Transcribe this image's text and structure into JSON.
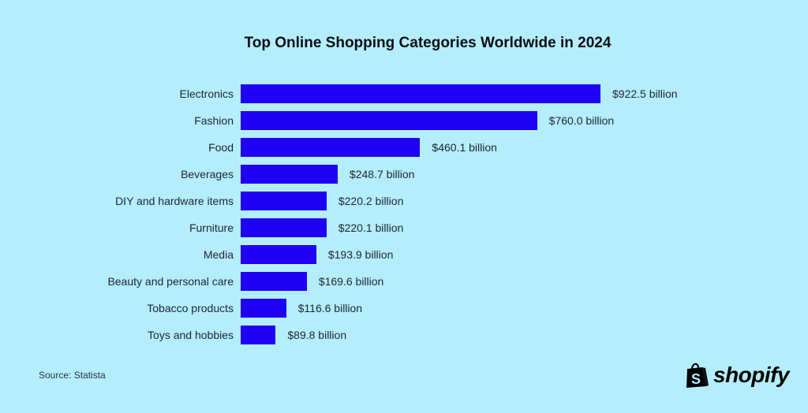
{
  "chart_data": {
    "type": "bar",
    "orientation": "horizontal",
    "title": "Top Online Shopping Categories Worldwide in 2024",
    "categories": [
      "Electronics",
      "Fashion",
      "Food",
      "Beverages",
      "DIY and hardware items",
      "Furniture",
      "Media",
      "Beauty and personal care",
      "Tobacco products",
      "Toys and hobbies"
    ],
    "values": [
      922.5,
      760.0,
      460.1,
      248.7,
      220.2,
      220.1,
      193.9,
      169.6,
      116.6,
      89.8
    ],
    "value_labels": [
      "$922.5 billion",
      "$760.0 billion",
      "$460.1 billion",
      "$248.7 billion",
      "$220.2 billion",
      "$220.1 billion",
      "$193.9 billion",
      "$169.6 billion",
      "$116.6 billion",
      "$89.8 billion"
    ],
    "unit": "billion USD",
    "xlabel": "",
    "ylabel": "",
    "grid": false,
    "legend": null,
    "bar_color": "#1f00f5"
  },
  "footer": {
    "source": "Source: Statista",
    "brand": "shopify"
  },
  "colors": {
    "background": "#b4eefc",
    "bar": "#1f00f5"
  }
}
